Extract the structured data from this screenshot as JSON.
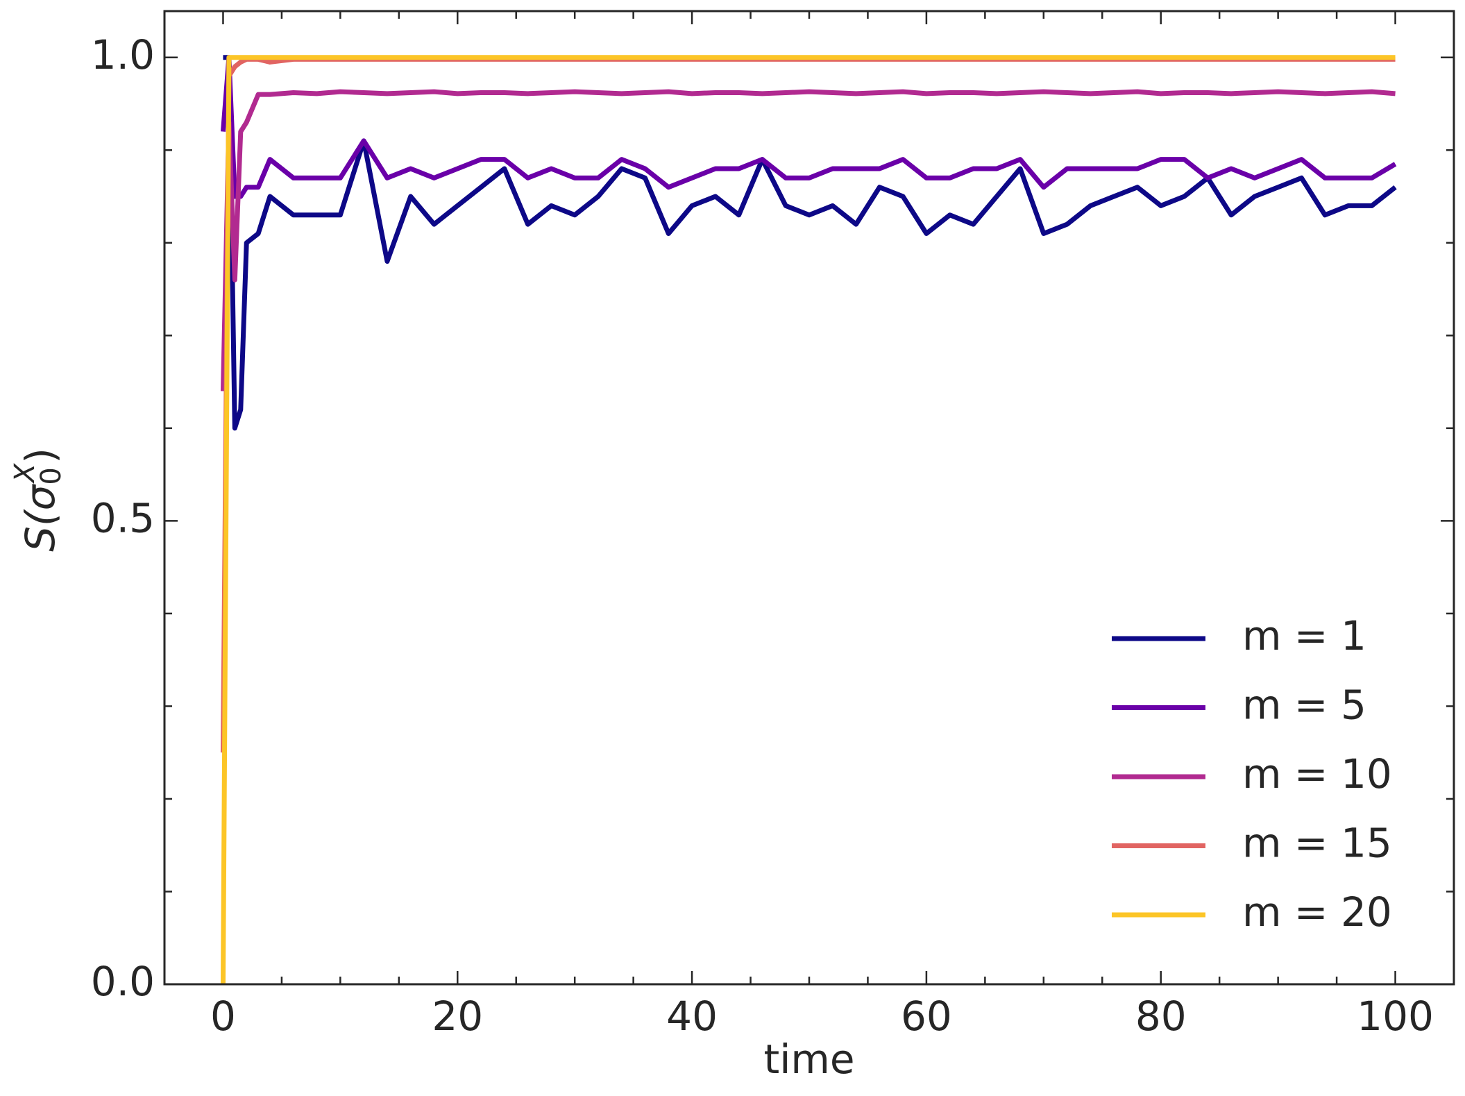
{
  "chart_data": {
    "type": "line",
    "xlabel": "time",
    "ylabel": {
      "base": "S(σ",
      "sub": "0",
      "sup": "X",
      "end": ")"
    },
    "x": [
      0,
      0.5,
      1,
      1.5,
      2,
      3,
      4,
      6,
      8,
      10,
      12,
      14,
      16,
      18,
      20,
      22,
      24,
      26,
      28,
      30,
      32,
      34,
      36,
      38,
      40,
      42,
      44,
      46,
      48,
      50,
      52,
      54,
      56,
      58,
      60,
      62,
      64,
      66,
      68,
      70,
      72,
      74,
      76,
      78,
      80,
      82,
      84,
      86,
      88,
      90,
      92,
      94,
      96,
      98,
      100
    ],
    "series": [
      {
        "name": "m = 1",
        "color": "#0d0887",
        "values": [
          1.0,
          1.0,
          0.6,
          0.62,
          0.8,
          0.81,
          0.85,
          0.83,
          0.83,
          0.83,
          0.91,
          0.78,
          0.85,
          0.82,
          0.84,
          0.86,
          0.88,
          0.82,
          0.84,
          0.83,
          0.85,
          0.88,
          0.87,
          0.81,
          0.84,
          0.85,
          0.83,
          0.89,
          0.84,
          0.83,
          0.84,
          0.82,
          0.86,
          0.85,
          0.81,
          0.83,
          0.82,
          0.85,
          0.88,
          0.81,
          0.82,
          0.84,
          0.85,
          0.86,
          0.84,
          0.85,
          0.87,
          0.83,
          0.85,
          0.86,
          0.87,
          0.83,
          0.84,
          0.84,
          0.86
        ]
      },
      {
        "name": "m = 5",
        "color": "#6a00a8",
        "values": [
          0.92,
          1.0,
          0.85,
          0.85,
          0.86,
          0.86,
          0.89,
          0.87,
          0.87,
          0.87,
          0.91,
          0.87,
          0.88,
          0.87,
          0.88,
          0.89,
          0.89,
          0.87,
          0.88,
          0.87,
          0.87,
          0.89,
          0.88,
          0.86,
          0.87,
          0.88,
          0.88,
          0.89,
          0.87,
          0.87,
          0.88,
          0.88,
          0.88,
          0.89,
          0.87,
          0.87,
          0.88,
          0.88,
          0.89,
          0.86,
          0.88,
          0.88,
          0.88,
          0.88,
          0.89,
          0.89,
          0.87,
          0.88,
          0.87,
          0.88,
          0.89,
          0.87,
          0.87,
          0.87,
          0.885
        ]
      },
      {
        "name": "m = 10",
        "color": "#b12a90",
        "values": [
          0.64,
          0.93,
          0.76,
          0.92,
          0.93,
          0.96,
          0.96,
          0.962,
          0.961,
          0.963,
          0.962,
          0.961,
          0.962,
          0.963,
          0.961,
          0.962,
          0.962,
          0.961,
          0.962,
          0.963,
          0.962,
          0.961,
          0.962,
          0.963,
          0.961,
          0.962,
          0.962,
          0.961,
          0.962,
          0.963,
          0.962,
          0.961,
          0.962,
          0.963,
          0.961,
          0.962,
          0.962,
          0.961,
          0.962,
          0.963,
          0.962,
          0.961,
          0.962,
          0.963,
          0.961,
          0.962,
          0.962,
          0.961,
          0.962,
          0.963,
          0.962,
          0.961,
          0.962,
          0.963,
          0.961
        ]
      },
      {
        "name": "m = 15",
        "color": "#e16462",
        "values": [
          0.25,
          0.98,
          0.99,
          0.995,
          0.998,
          0.998,
          0.995,
          0.998,
          0.998,
          0.998,
          0.998,
          0.998,
          0.998,
          0.998,
          0.998,
          0.998,
          0.998,
          0.998,
          0.998,
          0.998,
          0.998,
          0.998,
          0.998,
          0.998,
          0.998,
          0.998,
          0.998,
          0.998,
          0.998,
          0.998,
          0.998,
          0.998,
          0.998,
          0.998,
          0.998,
          0.998,
          0.998,
          0.998,
          0.998,
          0.998,
          0.998,
          0.998,
          0.998,
          0.998,
          0.998,
          0.998,
          0.998,
          0.998,
          0.998,
          0.998,
          0.998,
          0.998,
          0.998,
          0.998,
          0.998
        ]
      },
      {
        "name": "m = 20",
        "color": "#fcc527",
        "values": [
          0,
          1.0,
          1.0,
          1.0,
          1.0,
          1.0,
          1.0,
          1.0,
          1.0,
          1.0,
          1.0,
          1.0,
          1.0,
          1.0,
          1.0,
          1.0,
          1.0,
          1.0,
          1.0,
          1.0,
          1.0,
          1.0,
          1.0,
          1.0,
          1.0,
          1.0,
          1.0,
          1.0,
          1.0,
          1.0,
          1.0,
          1.0,
          1.0,
          1.0,
          1.0,
          1.0,
          1.0,
          1.0,
          1.0,
          1.0,
          1.0,
          1.0,
          1.0,
          1.0,
          1.0,
          1.0,
          1.0,
          1.0,
          1.0,
          1.0,
          1.0,
          1.0,
          1.0,
          1.0,
          1.0
        ]
      }
    ],
    "xlim": [
      -5,
      105
    ],
    "ylim": [
      0,
      1.05
    ],
    "xticks": [
      0,
      20,
      40,
      60,
      80,
      100
    ],
    "xticks_minor": [
      5,
      10,
      15,
      25,
      30,
      35,
      45,
      50,
      55,
      65,
      70,
      75,
      85,
      90,
      95
    ],
    "yticks": [
      {
        "value": 0,
        "label": "0.0"
      },
      {
        "value": 0.5,
        "label": "0.5"
      },
      {
        "value": 1,
        "label": "1.0"
      }
    ],
    "yticks_minor": [
      0.1,
      0.2,
      0.3,
      0.4,
      0.6,
      0.7,
      0.8,
      0.9
    ],
    "grid": false,
    "legend": "lower right"
  }
}
